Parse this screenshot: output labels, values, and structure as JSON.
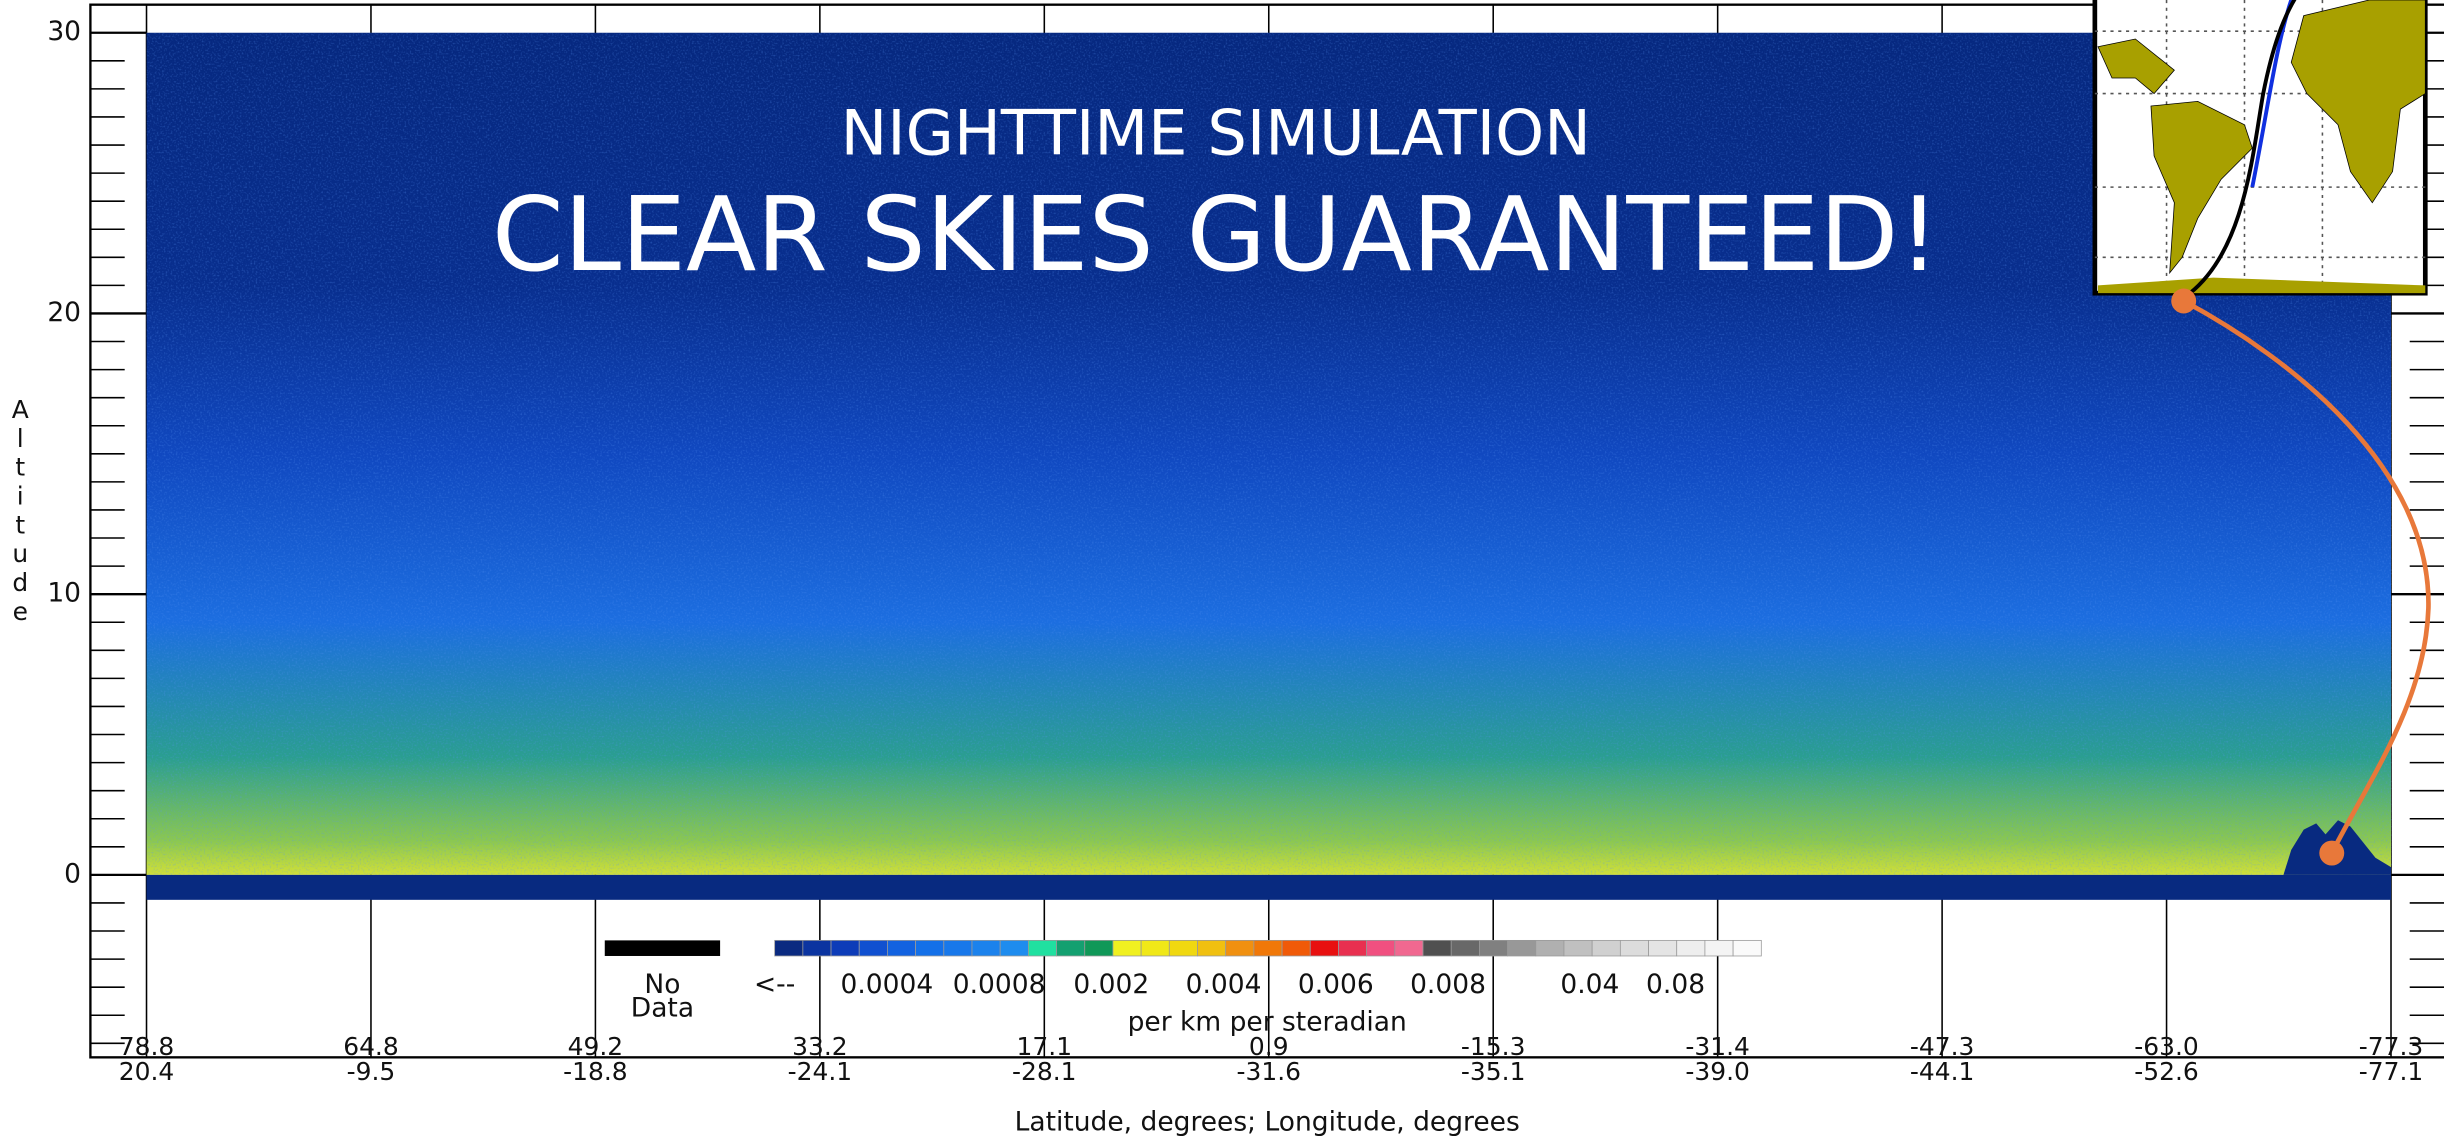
{
  "chart_data": {
    "type": "heatmap",
    "title": "NIGHTTIME SIMULATION",
    "subtitle": "CLEAR SKIES GUARANTEED!",
    "ylabel": "Altitude",
    "xlabel": "Latitude, degrees; Longitude, degrees",
    "ylim": [
      -6.5,
      31
    ],
    "yticks": [
      0,
      10,
      20,
      30
    ],
    "lat_ticks": [
      78.8,
      64.8,
      49.2,
      33.2,
      17.1,
      0.9,
      -15.3,
      -31.4,
      -47.3,
      {
        "value": -63,
        "label": "-63.0"
      },
      -77.3
    ],
    "lon_ticks": [
      20.4,
      -9.5,
      -18.8,
      -24.1,
      -28.1,
      -31.6,
      -35.1,
      {
        "value": -39,
        "label": "-39.0"
      },
      -44.1,
      -52.6,
      -77.1
    ],
    "no_data": [
      "No",
      "Data"
    ],
    "colorbar": {
      "labels": [
        "<--",
        0.0004,
        0.0008,
        0.002,
        0.004,
        0.006,
        0.008,
        0.04,
        0.08
      ],
      "label": "per km per steradian",
      "colors": [
        "#0a2a80",
        "#0b34a0",
        "#0d3cb8",
        "#1050d0",
        "#1262e0",
        "#1470e8",
        "#1878ea",
        "#1c82ec",
        "#1e8cee",
        "#20e0a0",
        "#14a070",
        "#109858",
        "#f0f020",
        "#f0e818",
        "#f0d810",
        "#f0c010",
        "#f09010",
        "#f07808",
        "#f05a08",
        "#e81010",
        "#e83050",
        "#f05080",
        "#f06890",
        "#505050",
        "#686868",
        "#808080",
        "#989898",
        "#b0b0b0",
        "#c0c0c0",
        "#d0d0d0",
        "#dcdcdc",
        "#e4e4e4",
        "#eeeeee",
        "#f4f4f4",
        "#fafafa"
      ]
    }
  }
}
